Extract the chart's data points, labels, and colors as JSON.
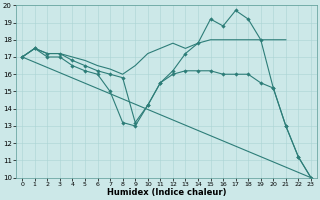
{
  "xlabel": "Humidex (Indice chaleur)",
  "xlim": [
    -0.5,
    23.5
  ],
  "ylim": [
    10,
    20
  ],
  "xticks": [
    0,
    1,
    2,
    3,
    4,
    5,
    6,
    7,
    8,
    9,
    10,
    11,
    12,
    13,
    14,
    15,
    16,
    17,
    18,
    19,
    20,
    21,
    22,
    23
  ],
  "yticks": [
    10,
    11,
    12,
    13,
    14,
    15,
    16,
    17,
    18,
    19,
    20
  ],
  "bg_color": "#cce8e8",
  "line_color": "#2d7d78",
  "lines": [
    {
      "x": [
        0,
        23
      ],
      "y": [
        17,
        10
      ],
      "has_marker": false
    },
    {
      "x": [
        0,
        1,
        2,
        3,
        4,
        5,
        6,
        7,
        8,
        9,
        10,
        11,
        12,
        13,
        14,
        15,
        16,
        17,
        18,
        19,
        20,
        21
      ],
      "y": [
        17,
        17.5,
        17.2,
        17.2,
        17.0,
        16.8,
        16.5,
        16.3,
        16.0,
        16.5,
        17.2,
        17.5,
        17.8,
        17.5,
        17.8,
        18.0,
        18.0,
        18.0,
        18.0,
        18.0,
        18.0,
        18.0
      ],
      "has_marker": false
    },
    {
      "x": [
        0,
        1,
        2,
        3,
        4,
        5,
        6,
        7,
        8,
        9,
        10,
        11,
        12,
        13,
        14,
        15,
        16,
        17,
        18,
        19,
        20,
        21,
        22,
        23
      ],
      "y": [
        17,
        17.5,
        17,
        17,
        16.5,
        16.2,
        16.0,
        15.0,
        13.2,
        13.0,
        14.2,
        15.5,
        16.0,
        16.2,
        16.2,
        16.2,
        16.0,
        16.0,
        16.0,
        15.5,
        15.2,
        13.0,
        11.2,
        10
      ],
      "has_marker": true
    },
    {
      "x": [
        0,
        1,
        2,
        3,
        4,
        5,
        6,
        7,
        8,
        9,
        10,
        11,
        12,
        13,
        14,
        15,
        16,
        17,
        18,
        19,
        20,
        21,
        22,
        23
      ],
      "y": [
        17,
        17.5,
        17.2,
        17.2,
        16.8,
        16.5,
        16.2,
        16.0,
        15.8,
        13.2,
        14.2,
        15.5,
        16.2,
        17.2,
        17.8,
        19.2,
        18.8,
        19.7,
        19.2,
        18.0,
        15.2,
        13.0,
        11.2,
        10
      ],
      "has_marker": true
    }
  ]
}
